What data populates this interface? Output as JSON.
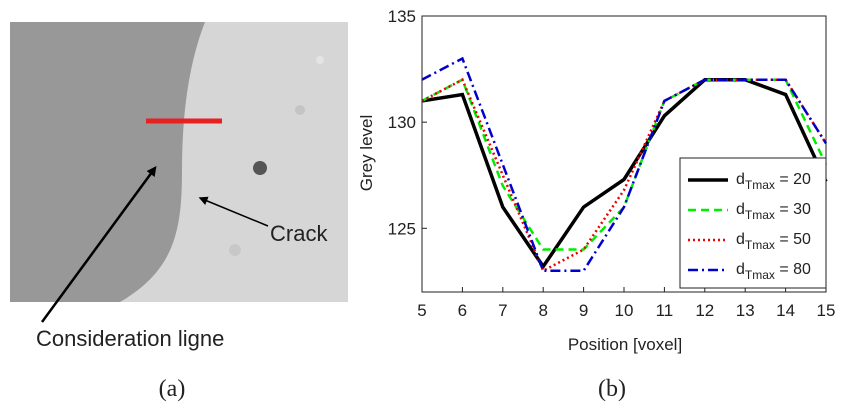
{
  "image_panel": {
    "labels": [
      "Crack",
      "Consideration ligne"
    ],
    "panel_label": "(a)"
  },
  "chart_data": {
    "type": "line",
    "panel_label": "(b)",
    "x_label": "Position [voxel]",
    "y_label": "Grey level",
    "x": [
      5,
      6,
      7,
      8,
      9,
      10,
      11,
      12,
      13,
      14,
      15
    ],
    "series": [
      {
        "name": "dTmax = 20",
        "color": "#000000",
        "dash": "",
        "width": 3.5,
        "values": [
          131,
          131.3,
          126,
          123.2,
          126,
          127.3,
          130.3,
          132,
          132,
          131.3,
          127.2
        ]
      },
      {
        "name": "dTmax = 30",
        "color": "#00ee00",
        "dash": "8,5",
        "width": 2.5,
        "values": [
          131,
          132,
          127,
          124,
          124,
          126,
          131,
          132,
          132,
          132,
          128
        ]
      },
      {
        "name": "dTmax = 50",
        "color": "#ee0000",
        "dash": "2,3",
        "width": 2.5,
        "values": [
          131,
          132,
          127.5,
          123,
          124,
          126.8,
          131,
          132,
          132,
          132,
          129
        ]
      },
      {
        "name": "dTmax = 80",
        "color": "#0000cc",
        "dash": "10,4,2,4",
        "width": 2.5,
        "values": [
          132,
          133,
          128,
          123,
          123,
          126,
          131,
          132,
          132,
          132,
          129
        ]
      }
    ],
    "xlim": [
      5,
      15
    ],
    "ylim": [
      122,
      135
    ],
    "xticks": [
      5,
      6,
      7,
      8,
      9,
      10,
      11,
      12,
      13,
      14,
      15
    ],
    "yticks": [
      125,
      130,
      135
    ],
    "legend": "lower right"
  }
}
